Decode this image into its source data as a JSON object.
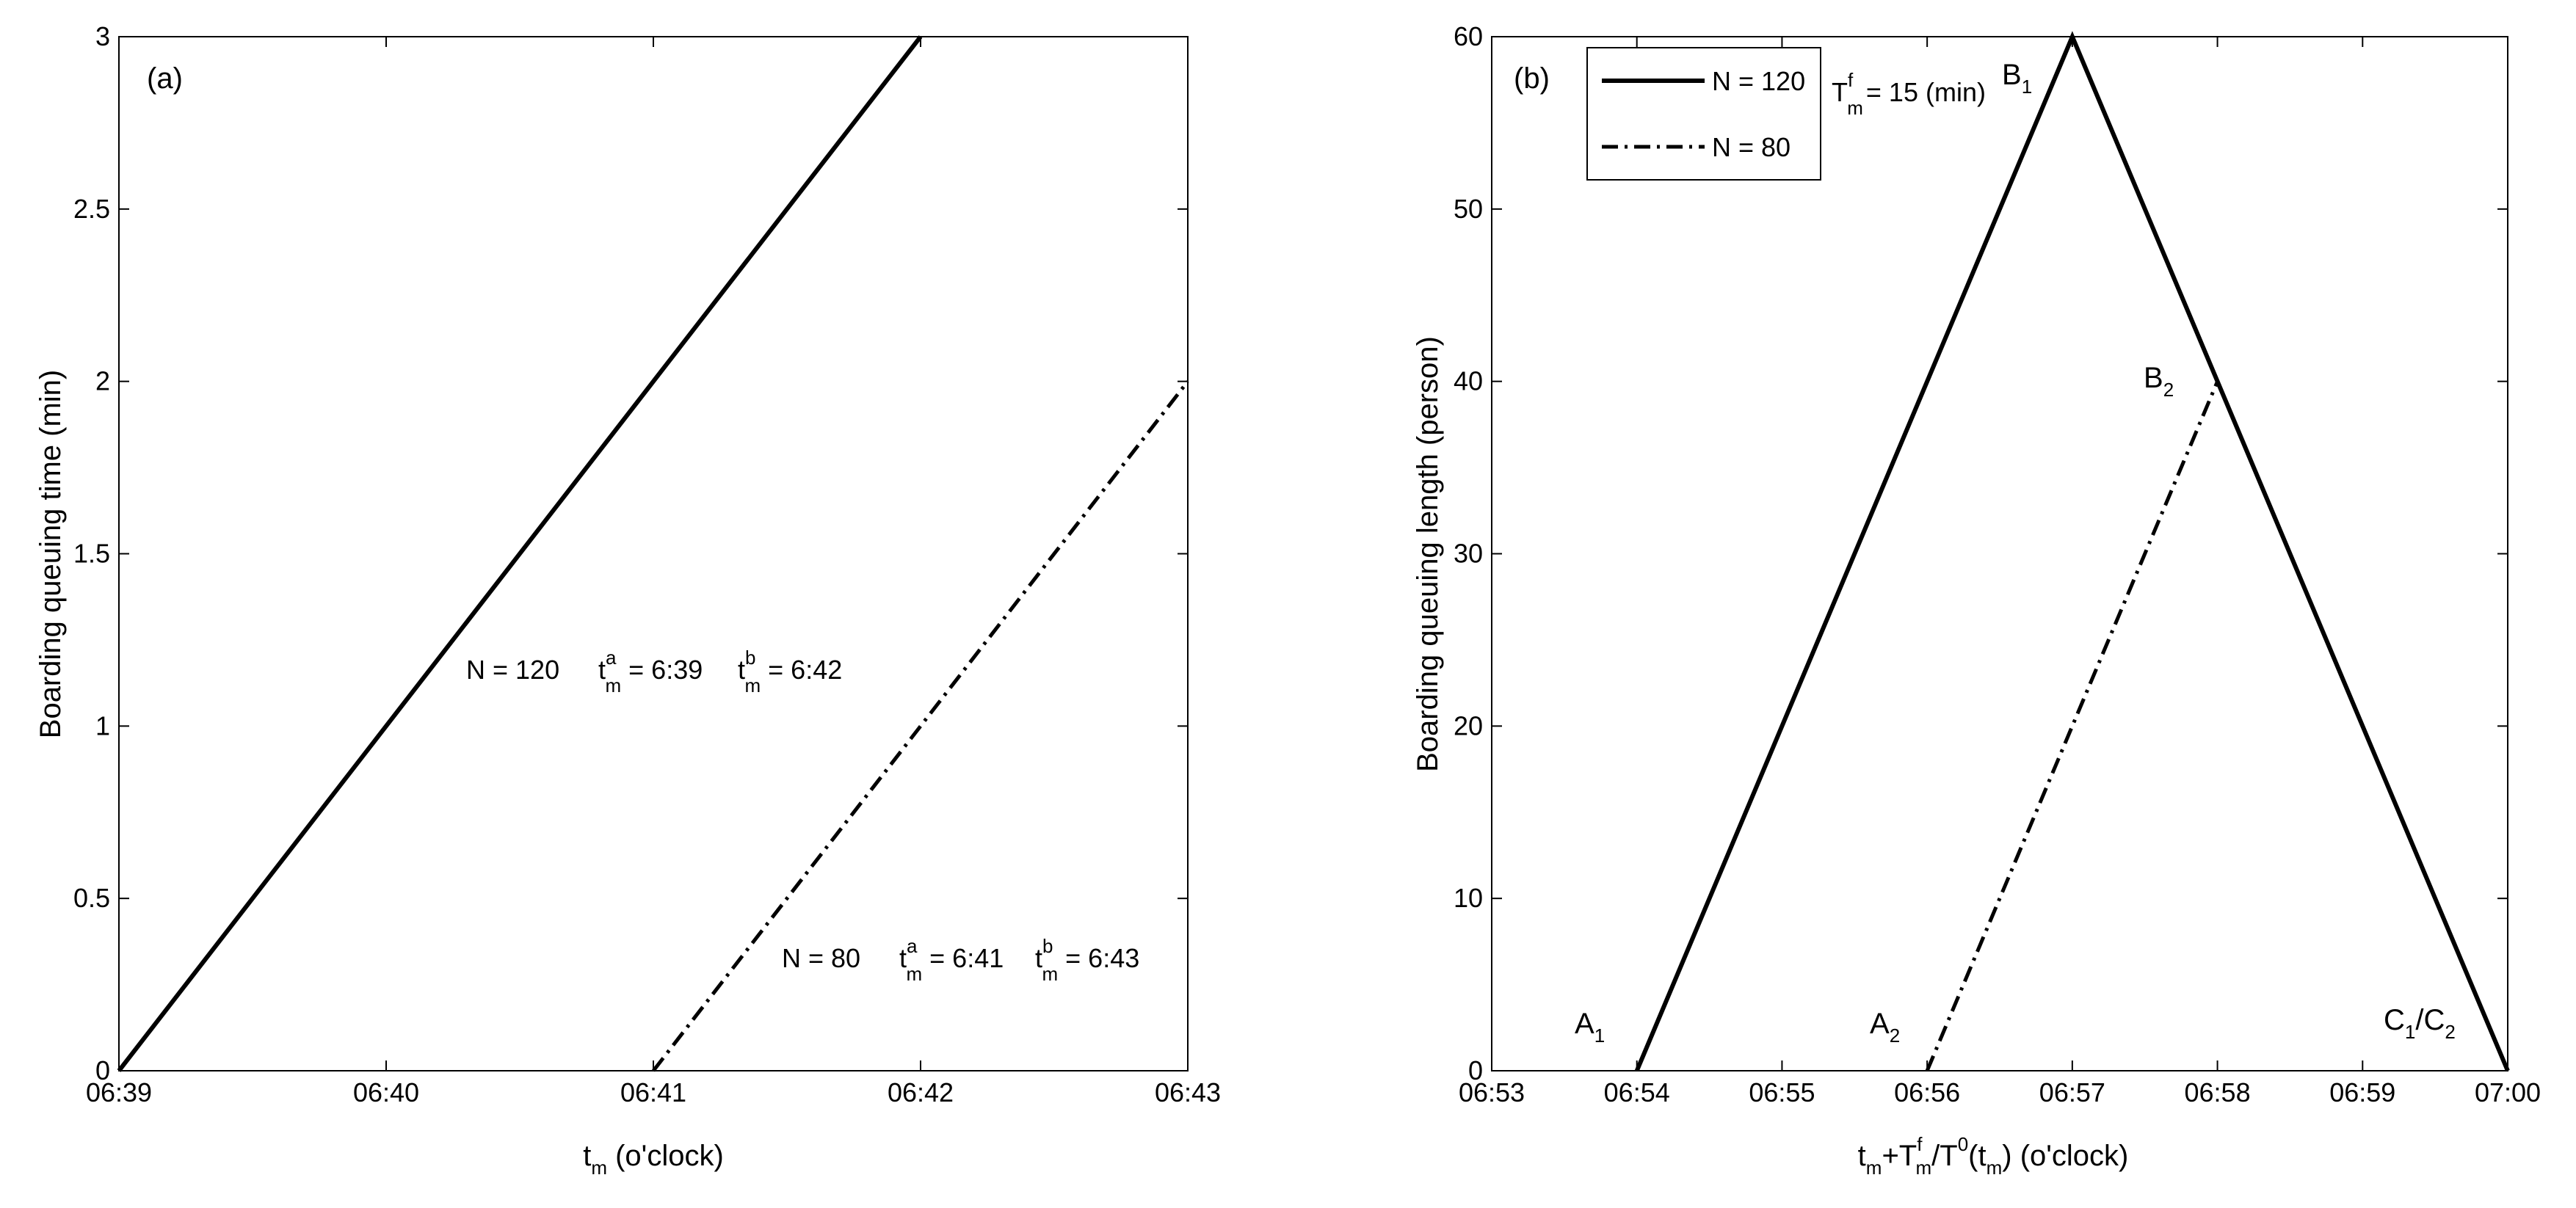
{
  "chart_data": [
    {
      "type": "line",
      "panel_label": "(a)",
      "ylabel": "Boarding queuing time (min)",
      "xlabel": {
        "base": "t",
        "sub": "m",
        "rest": " (o'clock)"
      },
      "x_ticks": [
        "06:39",
        "06:40",
        "06:41",
        "06:42",
        "06:43"
      ],
      "xlim": [
        0,
        4
      ],
      "y_ticks": [
        "0",
        "0.5",
        "1",
        "1.5",
        "2",
        "2.5",
        "3"
      ],
      "ylim": [
        0,
        3
      ],
      "grid": false,
      "series": [
        {
          "x": [
            0,
            3
          ],
          "y": [
            0,
            3
          ],
          "style": "solid"
        },
        {
          "x": [
            2,
            4
          ],
          "y": [
            0,
            2
          ],
          "style": "dashdot"
        }
      ],
      "annotations": [
        {
          "N": "N = 120",
          "ta": " = 6:39",
          "tb": " = 6:42"
        },
        {
          "N": "N = 80",
          "ta": " = 6:41",
          "tb": " = 6:43"
        }
      ],
      "ann_t": "t",
      "ann_sup_a": "a",
      "ann_sup_b": "b",
      "ann_sub": "m"
    },
    {
      "type": "line",
      "panel_label": "(b)",
      "ylabel": "Boarding queuing length (person)",
      "xlabel": {
        "p1": "t",
        "p1sub": "m",
        "p2": "+T",
        "p2sup": "f",
        "p2sub": "m",
        "p3": "/T",
        "p3sup": "0",
        "p4": "(t",
        "p4sub": "m",
        "p5": ") (o'clock)"
      },
      "x_ticks": [
        "06:53",
        "06:54",
        "06:55",
        "06:56",
        "06:57",
        "06:58",
        "06:59",
        "07:00"
      ],
      "xlim": [
        0,
        7
      ],
      "y_ticks": [
        "0",
        "10",
        "20",
        "30",
        "40",
        "50",
        "60"
      ],
      "ylim": [
        0,
        60
      ],
      "grid": false,
      "legend": {
        "position": "top-left",
        "entries": [
          {
            "label": "N = 120",
            "style": "solid"
          },
          {
            "label": "N = 80",
            "style": "dashdot"
          }
        ]
      },
      "param": {
        "base": "T",
        "sup": "f",
        "sub": "m",
        "rest": "= 15 (min)"
      },
      "series": [
        {
          "x": [
            1,
            4,
            7
          ],
          "y": [
            0,
            60,
            0
          ],
          "style": "solid"
        },
        {
          "x": [
            3,
            5,
            7
          ],
          "y": [
            0,
            40,
            0
          ],
          "style": "dashdot"
        }
      ],
      "point_labels": [
        {
          "base": "A",
          "sub": "1"
        },
        {
          "base": "A",
          "sub": "2"
        },
        {
          "base": "B",
          "sub": "1"
        },
        {
          "base": "B",
          "sub": "2"
        },
        {
          "base": "C",
          "sub": "1",
          "rest": "/C",
          "sub2": "2"
        }
      ]
    }
  ]
}
